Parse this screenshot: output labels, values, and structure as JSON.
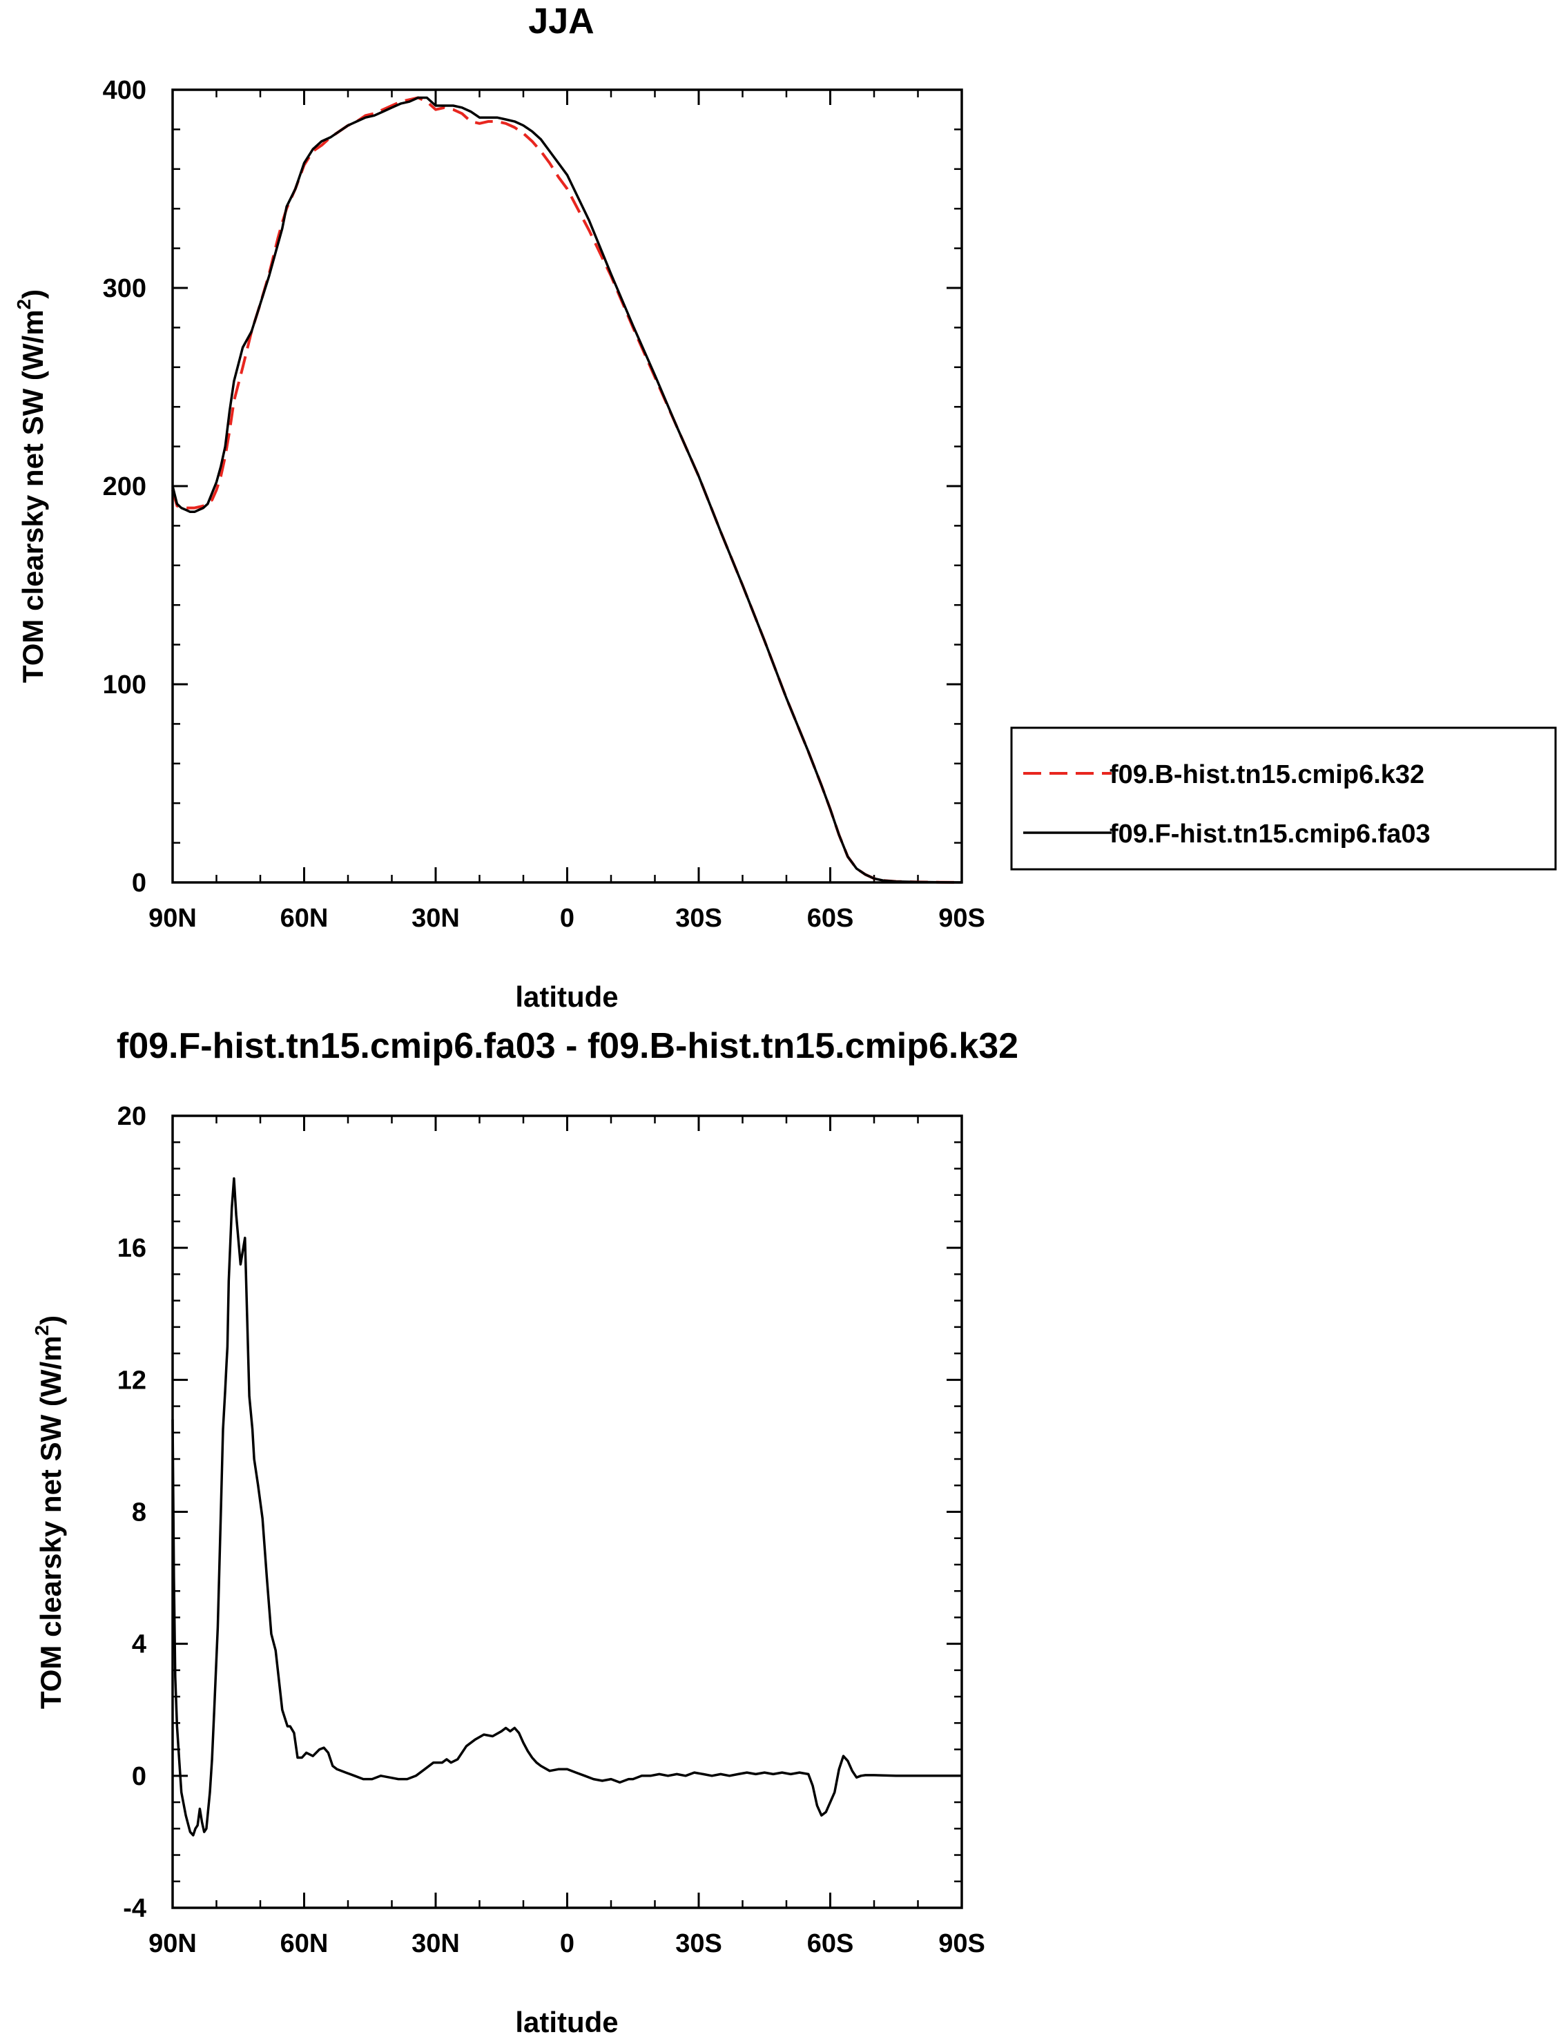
{
  "chart_data": [
    {
      "type": "line",
      "title": "JJA",
      "xlabel": "latitude",
      "ylabel": "TOM clearsky net SW (W/m",
      "ylabel_sup": "2",
      "ylabel_end": ")",
      "xlim": [
        90,
        -90
      ],
      "ylim": [
        0,
        400
      ],
      "x_ticks": [
        90,
        60,
        30,
        0,
        -30,
        -60,
        -90
      ],
      "x_tick_labels": [
        "90N",
        "60N",
        "30N",
        "0",
        "30S",
        "60S",
        "90S"
      ],
      "y_ticks": [
        0,
        100,
        200,
        300,
        400
      ],
      "y_tick_labels": [
        "0",
        "100",
        "200",
        "300",
        "400"
      ],
      "legend_position": "right",
      "series": [
        {
          "name": "f09.B-hist.tn15.cmip6.k32",
          "color": "#e8261f",
          "dash": "dashed",
          "x": [
            90,
            89,
            87,
            85,
            83,
            81,
            80,
            79,
            78,
            77,
            76,
            74,
            72,
            70,
            68,
            66,
            65,
            64,
            62,
            60,
            58,
            56,
            54,
            52,
            50,
            48,
            46,
            44,
            42,
            40,
            38,
            36,
            34,
            32,
            30,
            28,
            26,
            24,
            22,
            20,
            18,
            16,
            14,
            12,
            10,
            8,
            6,
            4,
            2,
            0,
            -5,
            -10,
            -15,
            -20,
            -25,
            -30,
            -35,
            -40,
            -45,
            -50,
            -55,
            -58,
            -60,
            -62,
            -64,
            -66,
            -68,
            -70,
            -72,
            -75,
            -80,
            -85,
            -90
          ],
          "y": [
            198,
            190,
            189,
            189,
            190,
            193,
            198,
            205,
            215,
            228,
            243,
            260,
            278,
            292,
            307,
            325,
            333,
            340,
            350,
            362,
            369,
            372,
            376,
            379,
            382,
            384,
            387,
            388,
            390,
            392,
            394,
            395,
            396,
            394,
            390,
            391,
            390,
            388,
            384,
            383,
            384,
            384,
            383,
            381,
            378,
            374,
            369,
            363,
            356,
            350,
            329,
            306,
            280,
            255,
            230,
            205,
            177,
            150,
            122,
            93,
            66,
            49,
            37,
            24,
            13,
            7,
            4,
            2,
            1,
            0.5,
            0.2,
            0.1,
            0
          ]
        },
        {
          "name": "f09.F-hist.tn15.cmip6.fa03",
          "color": "#000000",
          "dash": "solid",
          "x": [
            90,
            89,
            88,
            87,
            86,
            85,
            84,
            83,
            82,
            80,
            79,
            78,
            77,
            76,
            74,
            72,
            70,
            68,
            66,
            65,
            64,
            62,
            60,
            58,
            56,
            54,
            52,
            50,
            48,
            46,
            44,
            42,
            40,
            38,
            36,
            34,
            32,
            30,
            28,
            26,
            24,
            22,
            20,
            18,
            16,
            14,
            12,
            10,
            8,
            6,
            4,
            2,
            0,
            -5,
            -10,
            -15,
            -20,
            -25,
            -30,
            -35,
            -40,
            -45,
            -50,
            -55,
            -58,
            -60,
            -62,
            -64,
            -66,
            -68,
            -70,
            -72,
            -75,
            -80,
            -85,
            -90
          ],
          "y": [
            200,
            191,
            189,
            188,
            187,
            187,
            188,
            189,
            191,
            202,
            210,
            220,
            238,
            253,
            270,
            278,
            292,
            306,
            322,
            330,
            341,
            350,
            363,
            370,
            374,
            376,
            379,
            382,
            384,
            386,
            387,
            389,
            391,
            393,
            394,
            396,
            396,
            392,
            392,
            392,
            391,
            389,
            386,
            386,
            386,
            385,
            384,
            382,
            379,
            375,
            369,
            363,
            357,
            334,
            307,
            281,
            256,
            230,
            205,
            177,
            150,
            122,
            93,
            66,
            49,
            37,
            24,
            13,
            7,
            4,
            2,
            1,
            0.5,
            0.2,
            0.1,
            0
          ]
        }
      ]
    },
    {
      "type": "line",
      "title": "f09.F-hist.tn15.cmip6.fa03 - f09.B-hist.tn15.cmip6.k32",
      "xlabel": "latitude",
      "ylabel": "TOM clearsky net SW (W/m",
      "ylabel_sup": "2",
      "ylabel_end": ")",
      "xlim": [
        90,
        -90
      ],
      "ylim": [
        -4,
        20
      ],
      "x_ticks": [
        90,
        60,
        30,
        0,
        -30,
        -60,
        -90
      ],
      "x_tick_labels": [
        "90N",
        "60N",
        "30N",
        "0",
        "30S",
        "60S",
        "90S"
      ],
      "y_ticks": [
        -4,
        0,
        4,
        8,
        12,
        16,
        20
      ],
      "y_tick_labels": [
        "-4",
        "0",
        "4",
        "8",
        "12",
        "16",
        "20"
      ],
      "series": [
        {
          "color": "#000000",
          "dash": "solid",
          "x": [
            90,
            89.7,
            89.4,
            89,
            88.5,
            88,
            87,
            86,
            85.3,
            84.8,
            84.3,
            83.8,
            83.3,
            82.8,
            82.3,
            81.5,
            81,
            80.5,
            79.7,
            79,
            78.5,
            78,
            77.7,
            77.5,
            77.2,
            76.5,
            76,
            75.5,
            74.5,
            73.5,
            72.5,
            71.8,
            71.4,
            70.5,
            69.5,
            68.5,
            67.5,
            66.5,
            65,
            63.8,
            63.2,
            62.3,
            61.5,
            60.5,
            59.5,
            58,
            56.5,
            55.5,
            54.5,
            53.5,
            52.5,
            50.5,
            48.5,
            46.5,
            44.5,
            42.5,
            40.5,
            38.5,
            36.5,
            34.5,
            32.5,
            30.5,
            28.5,
            27.5,
            26.5,
            25,
            23,
            21,
            19,
            17,
            15,
            14,
            13,
            12,
            11,
            10,
            9,
            8,
            7,
            6,
            4,
            2,
            0,
            -2,
            -4,
            -6,
            -8,
            -10,
            -12,
            -14,
            -15,
            -17,
            -19,
            -21,
            -23,
            -25,
            -27,
            -29,
            -31,
            -33,
            -35,
            -37,
            -39,
            -41,
            -43,
            -45,
            -47,
            -49,
            -51,
            -53,
            -55,
            -56,
            -57,
            -58,
            -59,
            -60,
            -61,
            -62,
            -63,
            -64,
            -65,
            -66,
            -67,
            -68,
            -70,
            -75,
            -80,
            -85,
            -90
          ],
          "y": [
            10.8,
            6,
            3,
            1.5,
            0.5,
            -0.5,
            -1.2,
            -1.7,
            -1.8,
            -1.6,
            -1.5,
            -1,
            -1.4,
            -1.7,
            -1.6,
            -0.5,
            0.5,
            2,
            4.5,
            8,
            10.5,
            11.7,
            12.5,
            13,
            15,
            17.2,
            18.1,
            17,
            15.5,
            16.3,
            11.5,
            10.5,
            9.6,
            8.8,
            7.8,
            6,
            4.3,
            3.8,
            2,
            1.5,
            1.5,
            1.3,
            0.55,
            0.55,
            0.7,
            0.6,
            0.8,
            0.85,
            0.7,
            0.3,
            0.2,
            0.1,
            0,
            -0.1,
            -0.1,
            0,
            -0.05,
            -0.1,
            -0.1,
            0,
            0.2,
            0.4,
            0.4,
            0.5,
            0.4,
            0.5,
            0.9,
            1.1,
            1.25,
            1.2,
            1.35,
            1.45,
            1.35,
            1.45,
            1.3,
            1,
            0.75,
            0.55,
            0.4,
            0.3,
            0.15,
            0.2,
            0.2,
            0.1,
            0,
            -0.1,
            -0.15,
            -0.1,
            -0.2,
            -0.1,
            -0.1,
            0,
            0,
            0.05,
            0,
            0.05,
            0,
            0.1,
            0.05,
            0,
            0.05,
            0,
            0.05,
            0.1,
            0.05,
            0.1,
            0.05,
            0.1,
            0.05,
            0.1,
            0.05,
            -0.3,
            -0.9,
            -1.2,
            -1.1,
            -0.8,
            -0.5,
            0.2,
            0.6,
            0.45,
            0.15,
            -0.05,
            0,
            0.02,
            0.02,
            0,
            0,
            0,
            0
          ]
        }
      ]
    }
  ]
}
